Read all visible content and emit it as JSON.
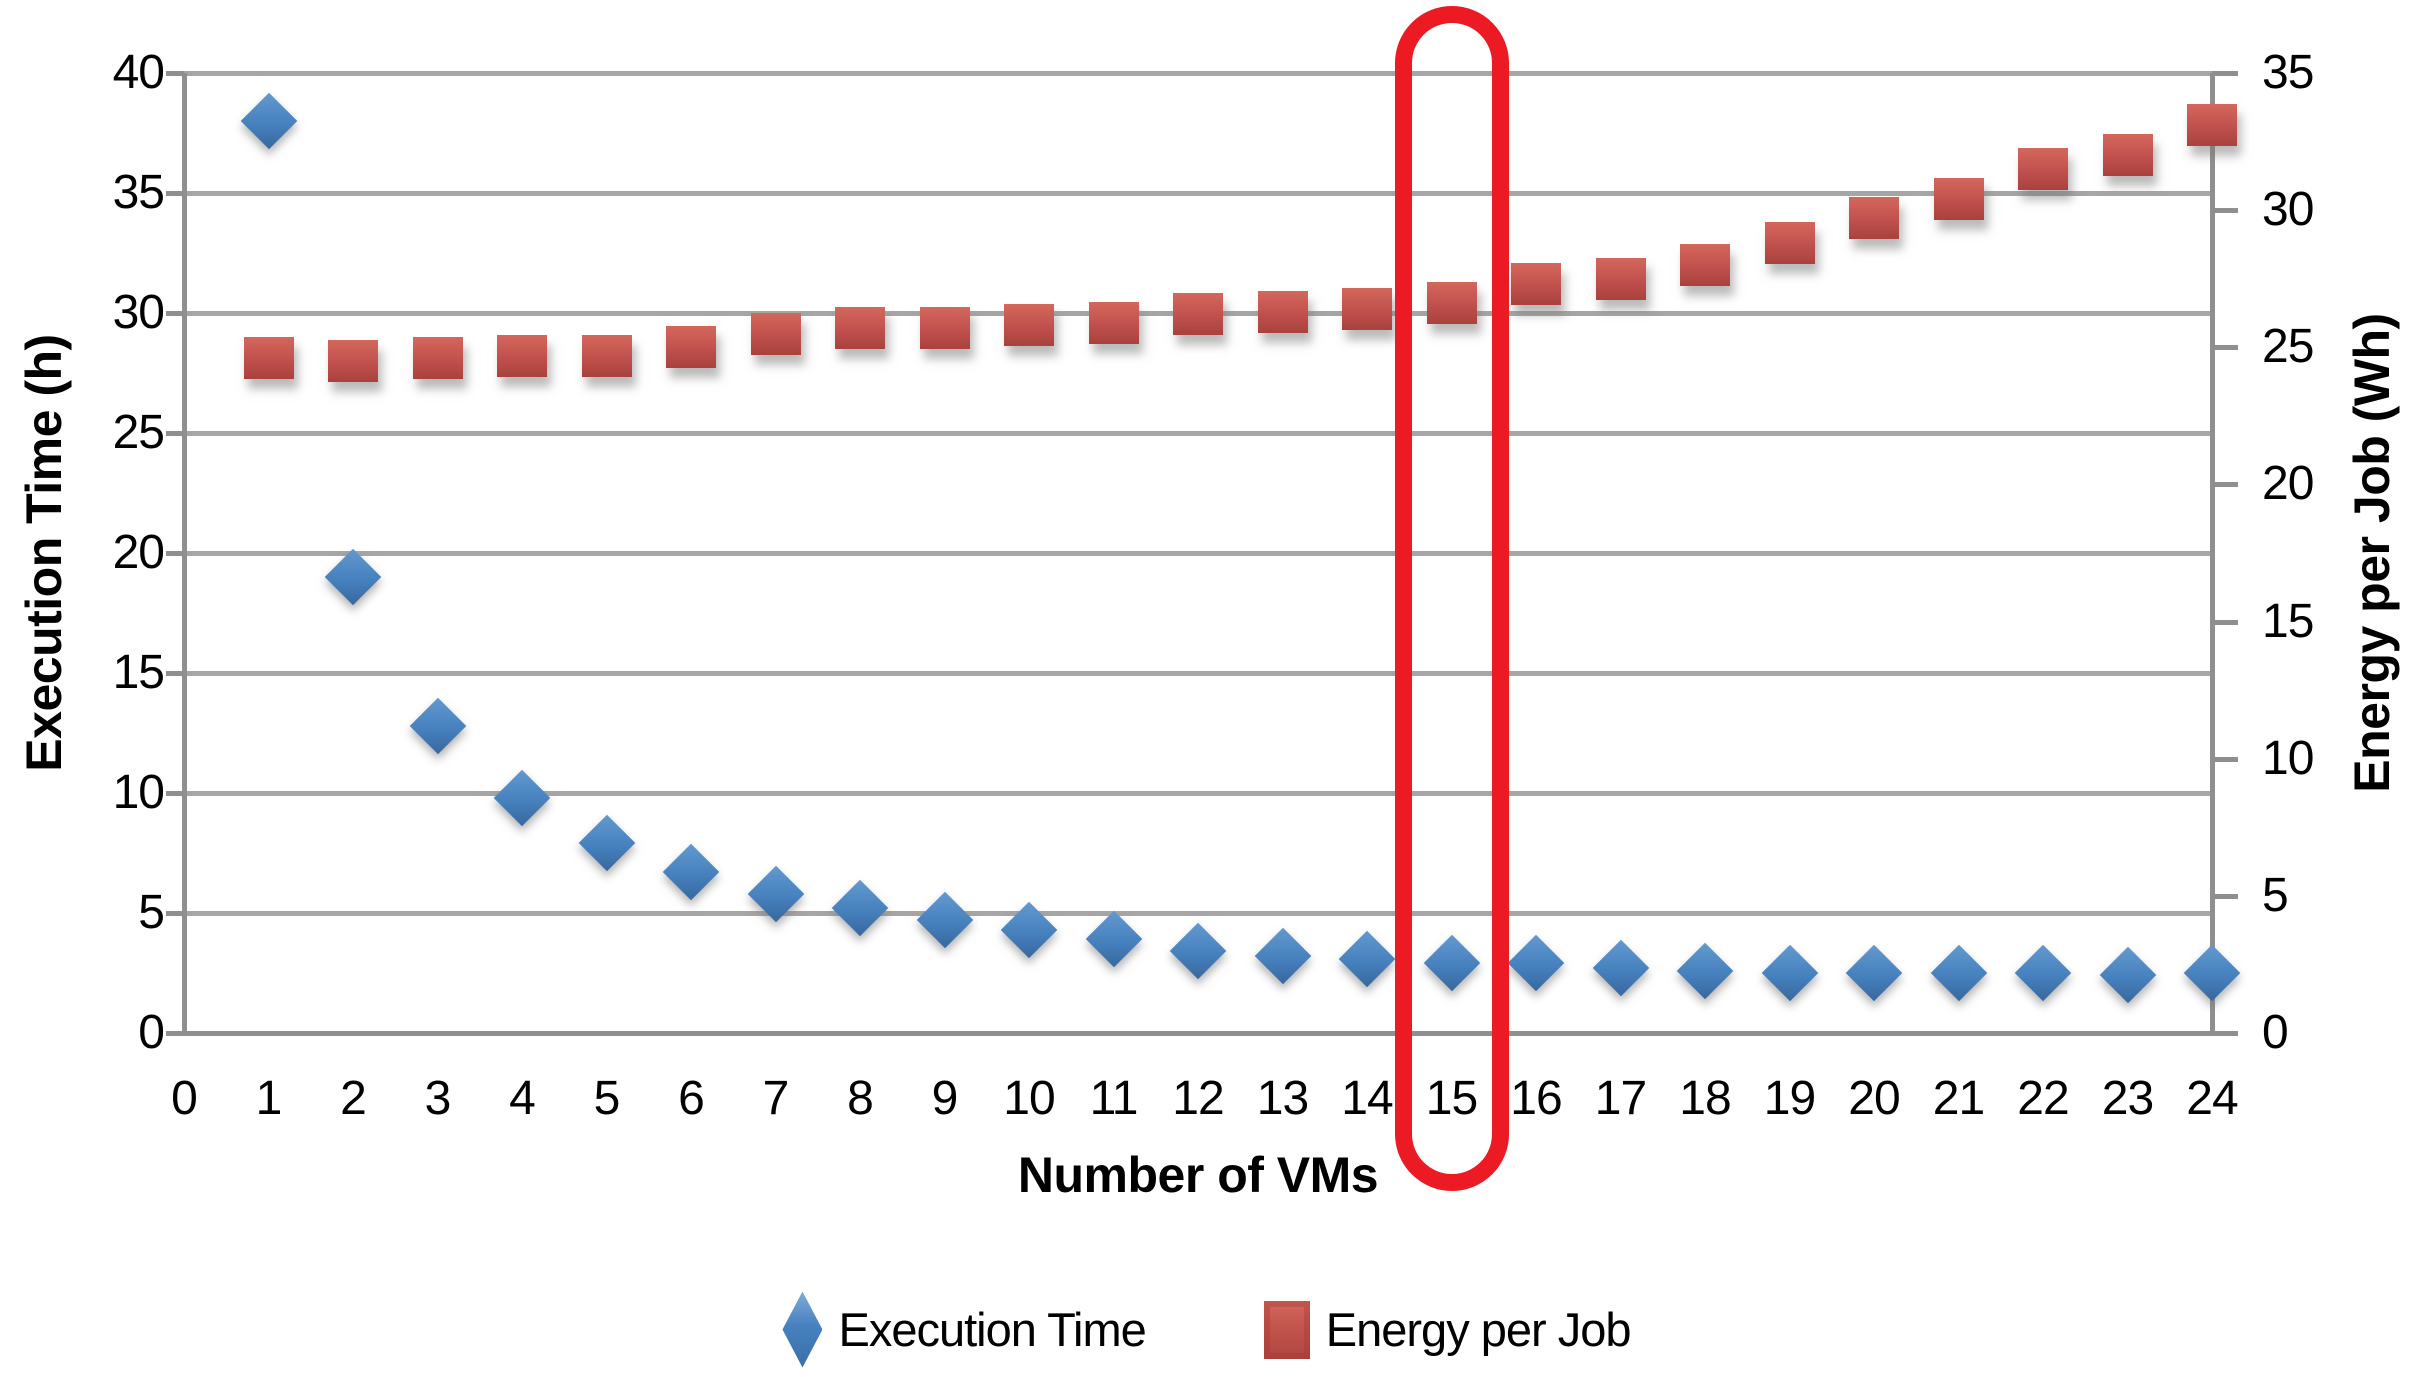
{
  "chart_data": {
    "type": "scatter",
    "title": "",
    "x_axis": {
      "label": "Number of VMs",
      "min": 0,
      "max": 24,
      "step": 1,
      "tick_labels": [
        "0",
        "1",
        "2",
        "3",
        "4",
        "5",
        "6",
        "7",
        "8",
        "9",
        "10",
        "11",
        "12",
        "13",
        "14",
        "15",
        "16",
        "17",
        "18",
        "19",
        "20",
        "21",
        "22",
        "23",
        "24"
      ]
    },
    "left_axis": {
      "label": "Execution Time (h)",
      "min": 0,
      "max": 40,
      "step": 5,
      "tick_labels": [
        "40",
        "35",
        "30",
        "25",
        "20",
        "15",
        "10",
        "5",
        "0"
      ]
    },
    "right_axis": {
      "label": "Energy per Job (Wh)",
      "min": 0,
      "max": 35,
      "step": 5,
      "tick_labels": [
        "35",
        "30",
        "25",
        "20",
        "15",
        "10",
        "5",
        "0"
      ]
    },
    "grid": true,
    "legend_position": "bottom",
    "x": [
      1,
      2,
      3,
      4,
      5,
      6,
      7,
      8,
      9,
      10,
      11,
      12,
      13,
      14,
      15,
      16,
      17,
      18,
      19,
      20,
      21,
      22,
      23,
      24
    ],
    "series": [
      {
        "name": "Execution Time",
        "axis": "left",
        "marker": "diamond",
        "color": "#4681BE",
        "values": [
          38.0,
          19.0,
          12.8,
          9.8,
          7.9,
          6.7,
          5.8,
          5.2,
          4.7,
          4.3,
          3.9,
          3.4,
          3.2,
          3.1,
          2.9,
          2.9,
          2.7,
          2.6,
          2.5,
          2.5,
          2.5,
          2.5,
          2.4,
          2.5
        ]
      },
      {
        "name": "Energy per Job",
        "axis": "right",
        "marker": "square",
        "color": "#C0504D",
        "values": [
          24.6,
          24.5,
          24.6,
          24.7,
          24.7,
          25.0,
          25.5,
          25.7,
          25.7,
          25.8,
          25.9,
          26.2,
          26.3,
          26.4,
          26.6,
          27.3,
          27.5,
          28.0,
          28.8,
          29.7,
          30.4,
          31.5,
          32.0,
          33.1
        ]
      }
    ],
    "annotations": [
      {
        "type": "highlight-rounded-rect",
        "x": 15,
        "color": "#EC1B23"
      }
    ]
  },
  "colors": {
    "background": "#FFFFFF",
    "grid": "#A6A6A6",
    "axis": "#8F8F8F",
    "text": "#000000",
    "highlight": "#EC1B23",
    "execution_time": "#4681BE",
    "energy_per_job": "#C0504D"
  }
}
